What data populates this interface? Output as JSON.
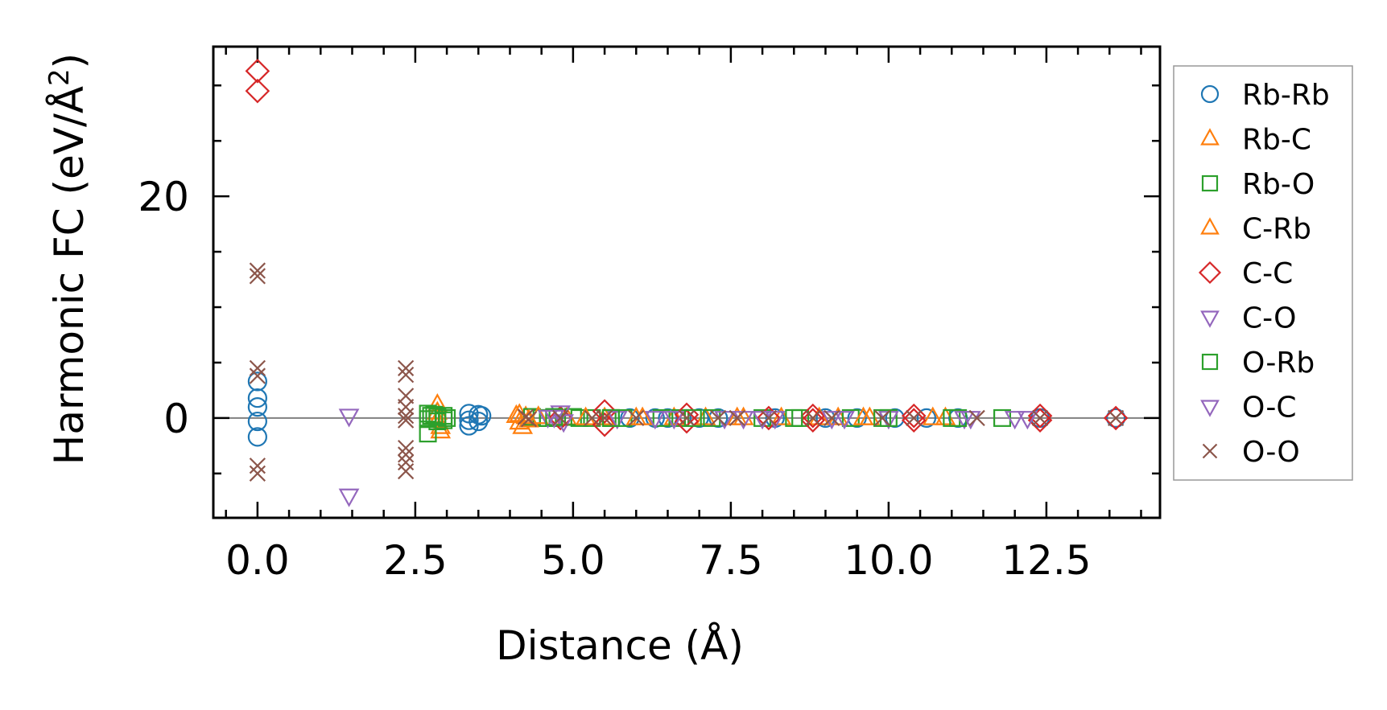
{
  "chart_data": {
    "type": "scatter",
    "xlabel": "Distance (Å)",
    "ylabel": "Harmonic FC (eV/Å²)",
    "ylabel_parts": [
      "Harmonic FC (eV/Å",
      "2",
      ")"
    ],
    "xlim": [
      -0.7,
      14.3
    ],
    "ylim": [
      -9,
      33.5
    ],
    "x_ticks": [
      0.0,
      2.5,
      5.0,
      7.5,
      10.0,
      12.5
    ],
    "x_tick_labels": [
      "0.0",
      "2.5",
      "5.0",
      "7.5",
      "10.0",
      "12.5"
    ],
    "x_minor_step": 0.5,
    "y_ticks": [
      0,
      20
    ],
    "y_tick_labels": [
      "0",
      "20"
    ],
    "y_minor_step": 5,
    "zero_line": true,
    "grid": false,
    "legend_position": "outside-right",
    "series": [
      {
        "name": "Rb-Rb",
        "marker": "circle",
        "color": "#1f77b4",
        "points": [
          [
            0,
            3.3
          ],
          [
            0,
            1.8
          ],
          [
            0,
            1.0
          ],
          [
            0,
            -0.3
          ],
          [
            0,
            -1.7
          ],
          [
            3.35,
            0.4
          ],
          [
            3.35,
            -0.2
          ],
          [
            3.35,
            -0.7
          ],
          [
            3.5,
            0.3
          ],
          [
            3.5,
            -0.3
          ],
          [
            3.55,
            0.2
          ],
          [
            5.9,
            0
          ],
          [
            6.3,
            0
          ],
          [
            6.5,
            0
          ],
          [
            7.0,
            0
          ],
          [
            7.3,
            0
          ],
          [
            8.2,
            0
          ],
          [
            9.0,
            0
          ],
          [
            9.5,
            0
          ],
          [
            10.1,
            0
          ],
          [
            10.6,
            0
          ],
          [
            11.1,
            0
          ],
          [
            12.4,
            0
          ],
          [
            13.6,
            0
          ]
        ]
      },
      {
        "name": "Rb-C",
        "marker": "triangle-up",
        "color": "#ff7f0e",
        "points": [
          [
            2.85,
            1.2
          ],
          [
            2.85,
            0.5
          ],
          [
            2.85,
            -0.2
          ],
          [
            2.9,
            -0.8
          ],
          [
            2.9,
            -1.2
          ],
          [
            4.15,
            0.3
          ],
          [
            4.15,
            -0.4
          ],
          [
            4.2,
            -0.8
          ],
          [
            4.25,
            0.1
          ],
          [
            4.9,
            0
          ],
          [
            5.5,
            0
          ],
          [
            6.1,
            0
          ],
          [
            6.6,
            0
          ],
          [
            7.1,
            0
          ],
          [
            7.7,
            0
          ],
          [
            8.3,
            0
          ],
          [
            9.2,
            0
          ],
          [
            9.7,
            0
          ],
          [
            10.9,
            0
          ]
        ]
      },
      {
        "name": "Rb-O",
        "marker": "square",
        "color": "#2ca02c",
        "points": [
          [
            2.7,
            0.4
          ],
          [
            2.7,
            -0.1
          ],
          [
            2.7,
            -1.4
          ],
          [
            2.8,
            0.3
          ],
          [
            2.85,
            0.1
          ],
          [
            2.95,
            0.2
          ],
          [
            2.95,
            -0.2
          ],
          [
            3.0,
            0
          ],
          [
            4.35,
            0.1
          ],
          [
            4.5,
            0
          ],
          [
            4.6,
            0
          ],
          [
            4.7,
            0
          ],
          [
            5.0,
            0.1
          ],
          [
            5.1,
            0
          ],
          [
            5.3,
            0
          ],
          [
            5.6,
            0
          ],
          [
            5.8,
            0
          ],
          [
            6.4,
            0
          ],
          [
            6.7,
            0
          ],
          [
            7.2,
            0
          ],
          [
            8.0,
            0
          ],
          [
            8.6,
            0
          ],
          [
            9.4,
            0
          ],
          [
            10.0,
            0
          ],
          [
            11.0,
            0
          ],
          [
            11.8,
            0
          ]
        ]
      },
      {
        "name": "C-Rb",
        "marker": "triangle-up",
        "color": "#ff7f0e",
        "points": [
          [
            4.1,
            0.2
          ],
          [
            4.3,
            -0.2
          ],
          [
            4.45,
            0.1
          ],
          [
            5.2,
            0
          ],
          [
            6.0,
            0
          ],
          [
            7.6,
            0
          ],
          [
            8.9,
            0
          ],
          [
            9.6,
            0
          ],
          [
            10.7,
            0
          ]
        ]
      },
      {
        "name": "C-C",
        "marker": "diamond",
        "color": "#d62728",
        "points": [
          [
            0,
            31.3
          ],
          [
            0,
            29.5
          ],
          [
            4.8,
            0
          ],
          [
            5.5,
            0.6
          ],
          [
            5.5,
            -0.6
          ],
          [
            6.8,
            0.3
          ],
          [
            6.8,
            -0.3
          ],
          [
            8.1,
            0
          ],
          [
            8.8,
            0.2
          ],
          [
            8.8,
            -0.2
          ],
          [
            10.4,
            0.2
          ],
          [
            10.4,
            -0.2
          ],
          [
            12.4,
            0.2
          ],
          [
            12.4,
            -0.2
          ],
          [
            13.6,
            0
          ]
        ]
      },
      {
        "name": "C-O",
        "marker": "triangle-down",
        "color": "#9467bd",
        "points": [
          [
            1.45,
            0.2
          ],
          [
            1.45,
            -7.0
          ],
          [
            4.6,
            0.1
          ],
          [
            4.8,
            0.5
          ],
          [
            4.85,
            -0.3
          ],
          [
            5.7,
            0
          ],
          [
            6.6,
            0
          ],
          [
            7.4,
            0
          ],
          [
            8.2,
            0
          ],
          [
            9.1,
            0
          ],
          [
            10.0,
            0
          ],
          [
            11.2,
            0
          ],
          [
            12.2,
            0
          ]
        ]
      },
      {
        "name": "O-Rb",
        "marker": "square",
        "color": "#2ca02c",
        "points": [
          [
            2.75,
            0.2
          ],
          [
            2.85,
            -0.3
          ],
          [
            4.7,
            0.1
          ],
          [
            5.6,
            0
          ],
          [
            6.9,
            0
          ],
          [
            8.5,
            0
          ],
          [
            9.9,
            0
          ],
          [
            11.1,
            0
          ]
        ]
      },
      {
        "name": "O-C",
        "marker": "triangle-down",
        "color": "#9467bd",
        "points": [
          [
            4.7,
            0.1
          ],
          [
            6.3,
            0
          ],
          [
            7.7,
            0
          ],
          [
            8.0,
            0
          ],
          [
            9.3,
            0
          ],
          [
            11.3,
            0
          ],
          [
            12.0,
            0
          ]
        ]
      },
      {
        "name": "O-O",
        "marker": "x",
        "color": "#8c564b",
        "points": [
          [
            0,
            13.3
          ],
          [
            0,
            12.8
          ],
          [
            0,
            4.5
          ],
          [
            0,
            3.8
          ],
          [
            0,
            -4.3
          ],
          [
            0,
            -5.0
          ],
          [
            2.35,
            4.5
          ],
          [
            2.35,
            3.9
          ],
          [
            2.35,
            2.0
          ],
          [
            2.35,
            1.0
          ],
          [
            2.35,
            0.2
          ],
          [
            2.35,
            -0.2
          ],
          [
            2.35,
            -2.7
          ],
          [
            2.35,
            -3.3
          ],
          [
            2.35,
            -4.0
          ],
          [
            2.35,
            -4.8
          ],
          [
            4.25,
            0.1
          ],
          [
            4.3,
            -0.1
          ],
          [
            4.8,
            0
          ],
          [
            5.3,
            0
          ],
          [
            5.5,
            0
          ],
          [
            6.0,
            0
          ],
          [
            6.8,
            0
          ],
          [
            7.3,
            0
          ],
          [
            7.6,
            0
          ],
          [
            8.1,
            0
          ],
          [
            8.8,
            0
          ],
          [
            9.1,
            0
          ],
          [
            9.9,
            0
          ],
          [
            10.4,
            0
          ],
          [
            11.4,
            0
          ],
          [
            12.4,
            0
          ],
          [
            13.6,
            0
          ]
        ]
      }
    ]
  }
}
